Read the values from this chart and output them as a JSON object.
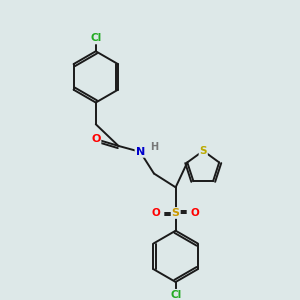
{
  "background_color": "#dde8e8",
  "bond_color": "#1a1a1a",
  "atom_colors": {
    "O": "#ff0000",
    "N": "#0000cc",
    "S_thio": "#bbaa00",
    "S_sulfonyl": "#cc9900",
    "Cl": "#22aa22",
    "H": "#777777"
  },
  "figsize": [
    3.0,
    3.0
  ],
  "dpi": 100,
  "lw": 1.4,
  "ring_r": 26,
  "thio_r": 17
}
